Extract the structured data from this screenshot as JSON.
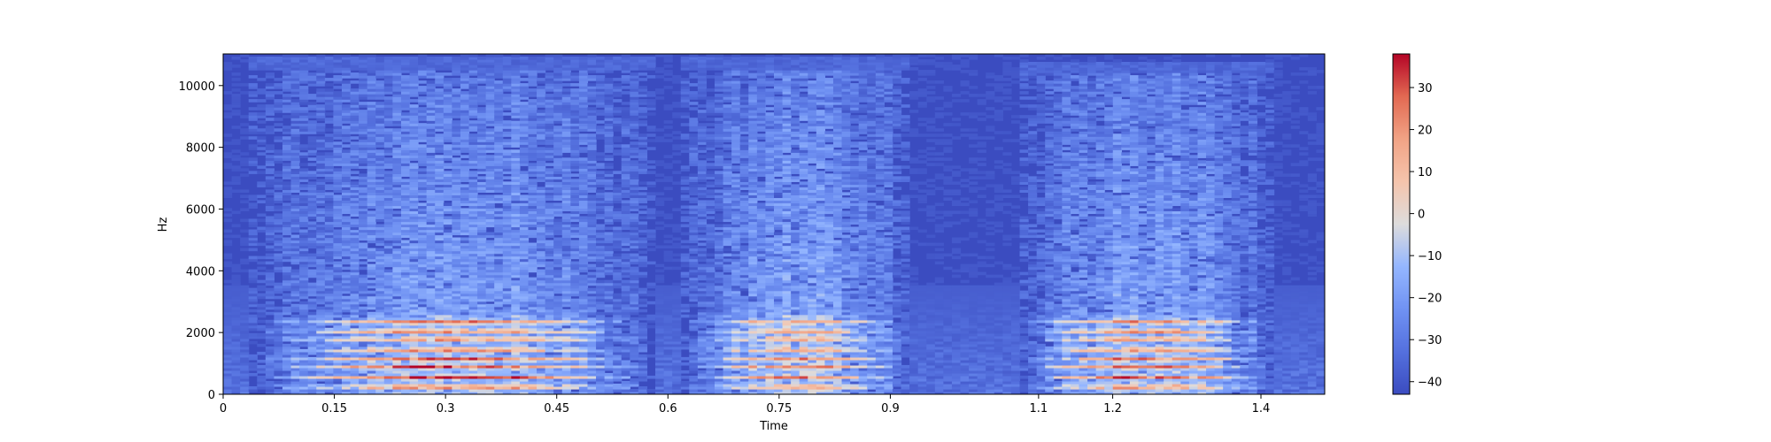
{
  "chart_data": {
    "type": "heatmap",
    "subtype": "spectrogram",
    "xlabel": "Time",
    "ylabel": "Hz",
    "xlim": [
      0,
      1.486
    ],
    "ylim": [
      0,
      11025
    ],
    "x_ticks": [
      {
        "value": 0,
        "label": "0"
      },
      {
        "value": 0.15,
        "label": "0.15"
      },
      {
        "value": 0.3,
        "label": "0.3"
      },
      {
        "value": 0.45,
        "label": "0.45"
      },
      {
        "value": 0.6,
        "label": "0.6"
      },
      {
        "value": 0.75,
        "label": "0.75"
      },
      {
        "value": 0.9,
        "label": "0.9"
      },
      {
        "value": 1.1,
        "label": "1.1"
      },
      {
        "value": 1.2,
        "label": "1.2"
      },
      {
        "value": 1.4,
        "label": "1.4"
      }
    ],
    "y_ticks": [
      {
        "value": 0,
        "label": "0"
      },
      {
        "value": 2000,
        "label": "2000"
      },
      {
        "value": 4000,
        "label": "4000"
      },
      {
        "value": 6000,
        "label": "6000"
      },
      {
        "value": 8000,
        "label": "8000"
      },
      {
        "value": 10000,
        "label": "10000"
      }
    ],
    "colorbar": {
      "colormap": "coolwarm",
      "range": [
        -43,
        38
      ],
      "ticks": [
        {
          "value": 30,
          "label": "30"
        },
        {
          "value": 20,
          "label": "20"
        },
        {
          "value": 10,
          "label": "10"
        },
        {
          "value": 0,
          "label": "0"
        },
        {
          "value": -10,
          "label": "−10"
        },
        {
          "value": -20,
          "label": "−20"
        },
        {
          "value": -30,
          "label": "−30"
        },
        {
          "value": -40,
          "label": "−40"
        }
      ]
    },
    "segments": [
      {
        "t_start": 0.04,
        "t_end": 0.58,
        "top_hz": 10500,
        "peak_db": 28
      },
      {
        "t_start": 0.62,
        "t_end": 0.93,
        "top_hz": 10500,
        "peak_db": 15
      },
      {
        "t_start": 1.07,
        "t_end": 1.42,
        "top_hz": 10400,
        "peak_db": 22
      }
    ],
    "background_db": -42
  }
}
